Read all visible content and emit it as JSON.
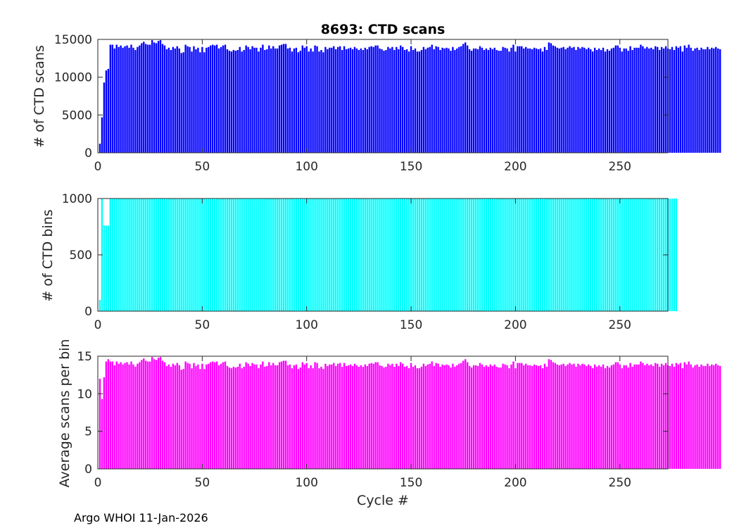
{
  "figure": {
    "footer": "Argo WHOI 11-Jan-2026",
    "xlabel": "Cycle #"
  },
  "chart_data": [
    {
      "type": "bar",
      "title": "8693: CTD scans",
      "ylabel": "# of CTD scans",
      "xlabel": "",
      "color": "#0000ff",
      "xlim": [
        0,
        273
      ],
      "ylim": [
        0,
        15000
      ],
      "xticks": [
        0,
        50,
        100,
        150,
        200,
        250
      ],
      "yticks": [
        0,
        5000,
        10000,
        15000
      ],
      "x_start": 1,
      "values": [
        1200,
        4700,
        9300,
        10900,
        11100,
        14300,
        14300,
        13800,
        14300,
        14000,
        14200,
        13900,
        14100,
        14200,
        13900,
        14300,
        13900,
        13600,
        14000,
        14200,
        14500,
        14700,
        14400,
        14300,
        14300,
        14900,
        14600,
        14500,
        14800,
        14900,
        14400,
        14200,
        13700,
        13900,
        13600,
        14000,
        13800,
        14100,
        13800,
        13200,
        13300,
        14300,
        14100,
        14000,
        13400,
        14100,
        13700,
        13900,
        13300,
        14000,
        13300,
        13900,
        14000,
        14200,
        14300,
        14200,
        14300,
        13800,
        14000,
        14200,
        14300,
        13700,
        13500,
        13400,
        13600,
        13500,
        13600,
        14000,
        13400,
        13600,
        14200,
        14000,
        13700,
        14100,
        13900,
        13900,
        13400,
        13900,
        14300,
        13600,
        13700,
        14200,
        13800,
        14100,
        13800,
        13800,
        14200,
        14300,
        14400,
        14400,
        13800,
        13900,
        13400,
        13800,
        13900,
        13300,
        13500,
        14200,
        13900,
        14100,
        13400,
        13800,
        13400,
        14200,
        14100,
        13400,
        13600,
        13300,
        14000,
        13700,
        13900,
        13900,
        14100,
        13700,
        14000,
        14100,
        13600,
        14100,
        13700,
        13800,
        13900,
        13700,
        14000,
        13800,
        13600,
        13800,
        13600,
        13900,
        13700,
        14000,
        14100,
        14000,
        14200,
        14200,
        13800,
        13700,
        13500,
        13600,
        14000,
        13800,
        14000,
        13600,
        14000,
        13700,
        14200,
        14000,
        13600,
        13700,
        13400,
        14100,
        13600,
        13800,
        13400,
        13400,
        13600,
        14000,
        13700,
        13900,
        14000,
        14300,
        13700,
        14100,
        14000,
        13600,
        13900,
        13800,
        13900,
        13800,
        13500,
        14000,
        13600,
        13800,
        14000,
        14100,
        14400,
        14600,
        14200,
        13700,
        13500,
        13800,
        13800,
        13700,
        14100,
        13900,
        13600,
        13800,
        13600,
        13900,
        13700,
        13900,
        13600,
        13500,
        13500,
        14000,
        13900,
        13800,
        13400,
        13900,
        14300,
        13400,
        14100,
        14100,
        14100,
        13800,
        14000,
        13800,
        13800,
        13700,
        13900,
        13800,
        13700,
        13800,
        13400,
        14000,
        13600,
        14600,
        14500,
        14200,
        14100,
        13900,
        13800,
        13900,
        14000,
        13700,
        13900,
        14100,
        13900,
        14000,
        13600,
        14000,
        13800,
        14000,
        13900,
        13700,
        13900,
        13700,
        13400,
        13900,
        13600,
        13800,
        13600,
        13900,
        13400,
        13700,
        13500,
        13800,
        13900,
        14200,
        14200,
        13900,
        13400,
        13800,
        13800,
        13500,
        14100,
        13600,
        13900,
        13900,
        13900,
        14300,
        14100,
        13800,
        14000,
        13800,
        13900,
        13700,
        14100,
        14000,
        13600,
        14000,
        13800,
        14100,
        13800,
        13700,
        14000,
        13600,
        14100,
        13900,
        14100,
        13400,
        14200,
        13900,
        14300,
        13900,
        13500,
        13800,
        13900,
        13600,
        13900,
        13700,
        13700,
        14000,
        13700,
        13900,
        13800,
        14000,
        13800,
        13700
      ]
    },
    {
      "type": "bar",
      "title": "",
      "ylabel": "# of CTD bins",
      "xlabel": "",
      "color": "#00ffff",
      "xlim": [
        0,
        273
      ],
      "ylim": [
        0,
        1000
      ],
      "xticks": [
        0,
        50,
        100,
        150,
        200,
        250
      ],
      "yticks": [
        0,
        500,
        1000
      ],
      "x_start": 1,
      "values": [
        100,
        1000,
        760,
        760,
        760,
        1000,
        1000,
        1000,
        1000,
        1000,
        1000,
        1000,
        1000,
        1000,
        1000,
        1000,
        1000,
        1000,
        1000,
        1000,
        1000,
        1000,
        1000,
        1000,
        1000,
        1000,
        1000,
        1000,
        1000,
        1000,
        1000,
        1000,
        1000,
        1000,
        1000,
        1000,
        1000,
        1000,
        1000,
        1000,
        1000,
        1000,
        1000,
        1000,
        1000,
        1000,
        1000,
        1000,
        1000,
        1000,
        1000,
        1000,
        1000,
        1000,
        1000,
        1000,
        1000,
        1000,
        1000,
        1000,
        1000,
        1000,
        1000,
        1000,
        1000,
        1000,
        1000,
        1000,
        1000,
        1000,
        1000,
        1000,
        1000,
        1000,
        1000,
        1000,
        1000,
        1000,
        1000,
        1000,
        1000,
        1000,
        1000,
        1000,
        1000,
        1000,
        1000,
        1000,
        1000,
        1000,
        1000,
        1000,
        1000,
        1000,
        1000,
        1000,
        1000,
        1000,
        1000,
        1000,
        1000,
        1000,
        1000,
        1000,
        1000,
        1000,
        1000,
        1000,
        1000,
        1000,
        1000,
        1000,
        1000,
        1000,
        1000,
        1000,
        1000,
        1000,
        1000,
        1000,
        1000,
        1000,
        1000,
        1000,
        1000,
        1000,
        1000,
        1000,
        1000,
        1000,
        1000,
        1000,
        1000,
        1000,
        1000,
        1000,
        1000,
        1000,
        1000,
        1000,
        1000,
        1000,
        1000,
        1000,
        1000,
        1000,
        1000,
        1000,
        1000,
        1000,
        1000,
        1000,
        1000,
        1000,
        1000,
        1000,
        1000,
        1000,
        1000,
        1000,
        1000,
        1000,
        1000,
        1000,
        1000,
        1000,
        1000,
        1000,
        1000,
        1000,
        1000,
        1000,
        1000,
        1000,
        1000,
        1000,
        1000,
        1000,
        1000,
        1000,
        1000,
        1000,
        1000,
        1000,
        1000,
        1000,
        1000,
        1000,
        1000,
        1000,
        1000,
        1000,
        1000,
        1000,
        1000,
        1000,
        1000,
        1000,
        1000,
        1000,
        1000,
        1000,
        1000,
        1000,
        1000,
        1000,
        1000,
        1000,
        1000,
        1000,
        1000,
        1000,
        1000,
        1000,
        1000,
        1000,
        1000,
        1000,
        1000,
        1000,
        1000,
        1000,
        1000,
        1000,
        1000,
        1000,
        1000,
        1000,
        1000,
        1000,
        1000,
        1000,
        1000,
        1000,
        1000,
        1000,
        1000,
        1000,
        1000,
        1000,
        1000,
        1000,
        1000,
        1000,
        1000,
        1000,
        1000,
        1000,
        1000,
        1000,
        1000,
        1000,
        1000,
        1000,
        1000,
        1000,
        1000,
        1000,
        1000,
        1000,
        1000,
        1000,
        1000,
        1000,
        1000,
        1000,
        1000,
        1000,
        1000,
        1000,
        1000,
        1000,
        1000,
        1000,
        1000,
        1000,
        1000
      ]
    },
    {
      "type": "bar",
      "title": "",
      "ylabel": "Average scans per bin",
      "xlabel": "Cycle #",
      "color": "#ff00ff",
      "xlim": [
        0,
        273
      ],
      "ylim": [
        0,
        15
      ],
      "xticks": [
        0,
        50,
        100,
        150,
        200,
        250
      ],
      "yticks": [
        0,
        5,
        10,
        15
      ],
      "x_start": 1,
      "values": [
        12,
        9.3,
        12.2,
        14.3,
        14.6,
        14.3,
        14.3,
        13.8,
        14.3,
        14,
        14.2,
        13.9,
        14.1,
        14.2,
        13.9,
        14.3,
        13.9,
        13.6,
        14,
        14.2,
        14.5,
        14.7,
        14.4,
        14.3,
        14.3,
        14.9,
        14.6,
        14.5,
        14.8,
        14.9,
        14.4,
        14.2,
        13.7,
        13.9,
        13.6,
        14,
        13.8,
        14.1,
        13.8,
        13.2,
        13.3,
        14.3,
        14.1,
        14,
        13.4,
        14.1,
        13.7,
        13.9,
        13.3,
        14,
        13.3,
        13.9,
        14,
        14.2,
        14.3,
        14.2,
        14.3,
        13.8,
        14,
        14.2,
        14.3,
        13.7,
        13.5,
        13.4,
        13.6,
        13.5,
        13.6,
        14,
        13.4,
        13.6,
        14.2,
        14,
        13.7,
        14.1,
        13.9,
        13.9,
        13.4,
        13.9,
        14.3,
        13.6,
        13.7,
        14.2,
        13.8,
        14.1,
        13.8,
        13.8,
        14.2,
        14.3,
        14.4,
        14.4,
        13.8,
        13.9,
        13.4,
        13.8,
        13.9,
        13.3,
        13.5,
        14.2,
        13.9,
        14.1,
        13.4,
        13.8,
        13.4,
        14.2,
        14.1,
        13.4,
        13.6,
        13.3,
        14,
        13.7,
        13.9,
        13.9,
        14.1,
        13.7,
        14,
        14.1,
        13.6,
        14.1,
        13.7,
        13.8,
        13.9,
        13.7,
        14,
        13.8,
        13.6,
        13.8,
        13.6,
        13.9,
        13.7,
        14,
        14.1,
        14,
        14.2,
        14.2,
        13.8,
        13.7,
        13.5,
        13.6,
        14,
        13.8,
        14,
        13.6,
        14,
        13.7,
        14.2,
        14,
        13.6,
        13.7,
        13.4,
        14.1,
        13.6,
        13.8,
        13.4,
        13.4,
        13.6,
        14,
        13.7,
        13.9,
        14,
        14.3,
        13.7,
        14.1,
        14,
        13.6,
        13.9,
        13.8,
        13.9,
        13.8,
        13.5,
        14,
        13.6,
        13.8,
        14,
        14.1,
        14.4,
        14.6,
        14.2,
        13.7,
        13.5,
        13.8,
        13.8,
        13.7,
        14.1,
        13.9,
        13.6,
        13.8,
        13.6,
        13.9,
        13.7,
        13.9,
        13.6,
        13.5,
        13.5,
        14,
        13.9,
        13.8,
        13.4,
        13.9,
        14.3,
        13.4,
        14.1,
        14.1,
        14.1,
        13.8,
        14,
        13.8,
        13.8,
        13.7,
        13.9,
        13.8,
        13.7,
        13.8,
        13.4,
        14,
        13.6,
        14.6,
        14.5,
        14.2,
        14.1,
        13.9,
        13.8,
        13.9,
        14,
        13.7,
        13.9,
        14.1,
        13.9,
        14,
        13.6,
        14,
        13.8,
        14,
        13.9,
        13.7,
        13.9,
        13.7,
        13.4,
        13.9,
        13.6,
        13.8,
        13.6,
        13.9,
        13.4,
        13.7,
        13.5,
        13.8,
        13.9,
        14.2,
        14.2,
        13.9,
        13.4,
        13.8,
        13.8,
        13.5,
        14.1,
        13.6,
        13.9,
        13.9,
        13.9,
        14.3,
        14.1,
        13.8,
        14,
        13.8,
        13.9,
        13.7,
        14.1,
        14,
        13.6,
        14,
        13.8,
        14.1,
        13.8,
        13.7,
        14,
        13.6,
        14.1,
        13.9,
        14.1,
        13.4,
        14.2,
        13.9,
        14.3,
        13.9,
        13.5,
        13.8,
        13.9,
        13.6,
        13.9,
        13.7,
        13.7,
        14,
        13.7,
        13.9,
        13.8,
        14,
        13.8,
        13.7
      ]
    }
  ]
}
